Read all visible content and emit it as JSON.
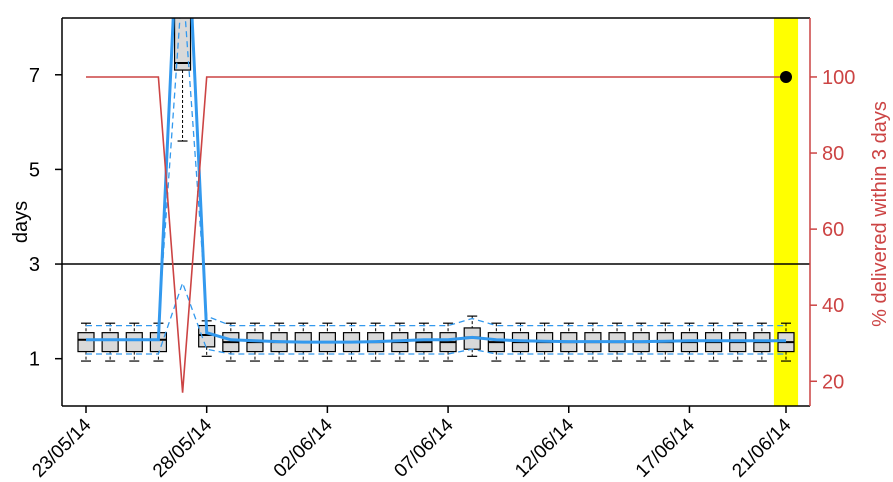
{
  "colors": {
    "box_fill": "#d9d9d9",
    "box_stroke": "#000000",
    "median_line": "#3399ee",
    "percent_line": "#cc4444",
    "threshold_line": "#000000",
    "highlight": "#ffff00",
    "axis_left": "#000000",
    "axis_right": "#cc4444"
  },
  "chart_data": {
    "type": "box",
    "ylabel": "days",
    "y2label": "% delivered within 3 days",
    "ylim": [
      0.0,
      8.2
    ],
    "y2lim": [
      13.5,
      115.5
    ],
    "yticks": [
      1,
      3,
      5,
      7
    ],
    "y2ticks": [
      20,
      40,
      60,
      80,
      100
    ],
    "xrange": [
      0,
      30
    ],
    "xtick_positions": [
      0,
      5,
      10,
      15,
      20,
      25,
      29
    ],
    "xtick_labels": [
      "23/05/14",
      "28/05/14",
      "02/06/14",
      "07/06/14",
      "12/06/14",
      "17/06/14",
      "21/06/14"
    ],
    "threshold_days": 3,
    "highlight_range": [
      28.5,
      29.5
    ],
    "boxes": [
      {
        "x": 0,
        "wlo": 0.95,
        "q1": 1.15,
        "med": 1.4,
        "q3": 1.55,
        "whi": 1.75
      },
      {
        "x": 1,
        "wlo": 0.95,
        "q1": 1.15,
        "med": 1.4,
        "q3": 1.55,
        "whi": 1.75
      },
      {
        "x": 2,
        "wlo": 0.95,
        "q1": 1.15,
        "med": 1.4,
        "q3": 1.55,
        "whi": 1.75
      },
      {
        "x": 3,
        "wlo": 0.95,
        "q1": 1.15,
        "med": 1.4,
        "q3": 1.55,
        "whi": 1.75
      },
      {
        "x": 4,
        "wlo": 5.6,
        "q1": 7.1,
        "med": 7.25,
        "q3": 8.3,
        "whi": 8.6
      },
      {
        "x": 5,
        "wlo": 1.05,
        "q1": 1.25,
        "med": 1.5,
        "q3": 1.7,
        "whi": 1.8
      },
      {
        "x": 6,
        "wlo": 0.95,
        "q1": 1.15,
        "med": 1.35,
        "q3": 1.55,
        "whi": 1.75
      },
      {
        "x": 7,
        "wlo": 0.95,
        "q1": 1.15,
        "med": 1.35,
        "q3": 1.55,
        "whi": 1.75
      },
      {
        "x": 8,
        "wlo": 0.95,
        "q1": 1.15,
        "med": 1.35,
        "q3": 1.55,
        "whi": 1.75
      },
      {
        "x": 9,
        "wlo": 0.95,
        "q1": 1.15,
        "med": 1.35,
        "q3": 1.55,
        "whi": 1.75
      },
      {
        "x": 10,
        "wlo": 0.95,
        "q1": 1.15,
        "med": 1.35,
        "q3": 1.55,
        "whi": 1.75
      },
      {
        "x": 11,
        "wlo": 0.95,
        "q1": 1.15,
        "med": 1.35,
        "q3": 1.55,
        "whi": 1.75
      },
      {
        "x": 12,
        "wlo": 0.95,
        "q1": 1.15,
        "med": 1.35,
        "q3": 1.55,
        "whi": 1.75
      },
      {
        "x": 13,
        "wlo": 0.95,
        "q1": 1.15,
        "med": 1.35,
        "q3": 1.55,
        "whi": 1.75
      },
      {
        "x": 14,
        "wlo": 0.95,
        "q1": 1.15,
        "med": 1.35,
        "q3": 1.55,
        "whi": 1.75
      },
      {
        "x": 15,
        "wlo": 0.95,
        "q1": 1.15,
        "med": 1.35,
        "q3": 1.55,
        "whi": 1.75
      },
      {
        "x": 16,
        "wlo": 1.05,
        "q1": 1.2,
        "med": 1.45,
        "q3": 1.65,
        "whi": 1.9
      },
      {
        "x": 17,
        "wlo": 0.95,
        "q1": 1.15,
        "med": 1.35,
        "q3": 1.55,
        "whi": 1.75
      },
      {
        "x": 18,
        "wlo": 0.95,
        "q1": 1.15,
        "med": 1.35,
        "q3": 1.55,
        "whi": 1.75
      },
      {
        "x": 19,
        "wlo": 0.95,
        "q1": 1.15,
        "med": 1.35,
        "q3": 1.55,
        "whi": 1.75
      },
      {
        "x": 20,
        "wlo": 0.95,
        "q1": 1.15,
        "med": 1.35,
        "q3": 1.55,
        "whi": 1.75
      },
      {
        "x": 21,
        "wlo": 0.95,
        "q1": 1.15,
        "med": 1.35,
        "q3": 1.55,
        "whi": 1.75
      },
      {
        "x": 22,
        "wlo": 0.95,
        "q1": 1.15,
        "med": 1.35,
        "q3": 1.55,
        "whi": 1.75
      },
      {
        "x": 23,
        "wlo": 0.95,
        "q1": 1.15,
        "med": 1.35,
        "q3": 1.55,
        "whi": 1.75
      },
      {
        "x": 24,
        "wlo": 0.95,
        "q1": 1.15,
        "med": 1.35,
        "q3": 1.55,
        "whi": 1.75
      },
      {
        "x": 25,
        "wlo": 0.95,
        "q1": 1.15,
        "med": 1.35,
        "q3": 1.55,
        "whi": 1.75
      },
      {
        "x": 26,
        "wlo": 0.95,
        "q1": 1.15,
        "med": 1.35,
        "q3": 1.55,
        "whi": 1.75
      },
      {
        "x": 27,
        "wlo": 0.95,
        "q1": 1.15,
        "med": 1.35,
        "q3": 1.55,
        "whi": 1.75
      },
      {
        "x": 28,
        "wlo": 0.95,
        "q1": 1.15,
        "med": 1.35,
        "q3": 1.55,
        "whi": 1.75
      },
      {
        "x": 29,
        "wlo": 0.95,
        "q1": 1.15,
        "med": 1.35,
        "q3": 1.55,
        "whi": 1.75
      }
    ],
    "median_series": [
      1.4,
      1.4,
      1.4,
      1.4,
      12.5,
      1.55,
      1.4,
      1.38,
      1.36,
      1.35,
      1.35,
      1.35,
      1.36,
      1.38,
      1.4,
      1.4,
      1.45,
      1.4,
      1.38,
      1.37,
      1.36,
      1.36,
      1.36,
      1.36,
      1.37,
      1.38,
      1.38,
      1.38,
      1.38,
      1.38
    ],
    "upper_dashed": [
      1.7,
      1.7,
      1.7,
      1.7,
      9.0,
      1.9,
      1.7,
      1.7,
      1.7,
      1.7,
      1.7,
      1.7,
      1.7,
      1.7,
      1.7,
      1.7,
      1.85,
      1.7,
      1.7,
      1.7,
      1.7,
      1.7,
      1.7,
      1.7,
      1.7,
      1.7,
      1.7,
      1.7,
      1.7,
      1.7
    ],
    "lower_dashed": [
      1.1,
      1.1,
      1.1,
      1.1,
      2.6,
      1.2,
      1.1,
      1.1,
      1.1,
      1.1,
      1.1,
      1.1,
      1.1,
      1.1,
      1.1,
      1.1,
      1.2,
      1.1,
      1.1,
      1.1,
      1.1,
      1.1,
      1.1,
      1.1,
      1.1,
      1.1,
      1.1,
      1.1,
      1.1,
      1.1
    ],
    "percent_series": [
      {
        "x": 0,
        "y": 100
      },
      {
        "x": 1,
        "y": 100
      },
      {
        "x": 2,
        "y": 100
      },
      {
        "x": 3,
        "y": 100
      },
      {
        "x": 4,
        "y": 17
      },
      {
        "x": 5,
        "y": 100
      },
      {
        "x": 29,
        "y": 100
      }
    ],
    "highlight_point": {
      "x": 29,
      "y": 100
    }
  }
}
